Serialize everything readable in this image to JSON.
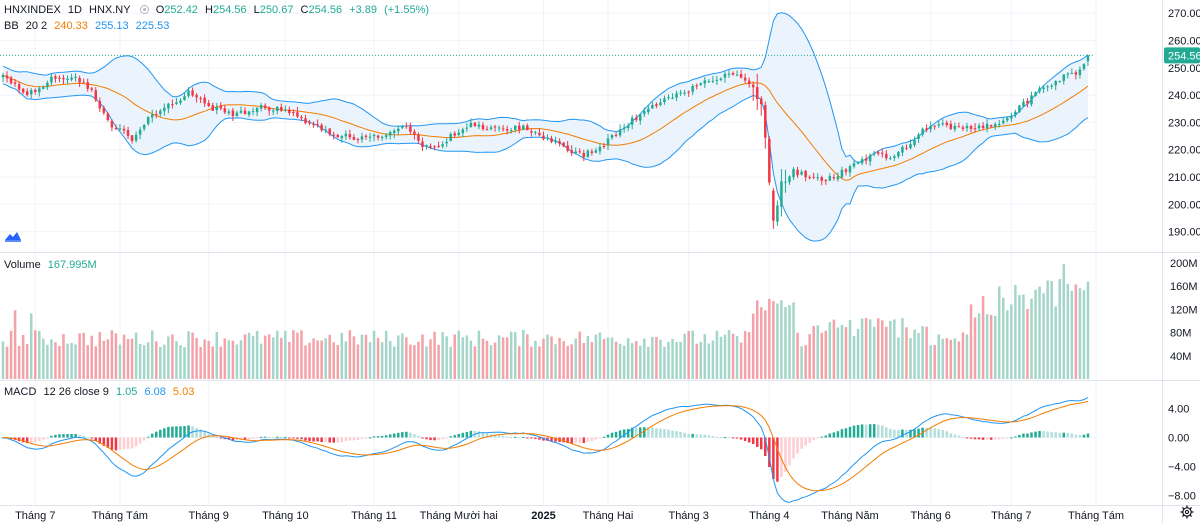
{
  "header": {
    "symbol": "HNXINDEX",
    "interval": "1D",
    "exchange": "HNX.NY",
    "open_label": "O",
    "open": "252.42",
    "high_label": "H",
    "high": "254.56",
    "low_label": "L",
    "low": "250.67",
    "close_label": "C",
    "close": "254.56",
    "change": "+3.89",
    "change_pct": "(+1.55%)"
  },
  "bb_legend": {
    "name": "BB",
    "params": "20 2",
    "basis": "240.33",
    "upper": "255.13",
    "lower": "225.53"
  },
  "volume_legend": {
    "name": "Volume",
    "value": "167.995M"
  },
  "macd_legend": {
    "name": "MACD",
    "params": "12 26 close 9",
    "hist": "1.05",
    "macd": "6.08",
    "signal": "5.03"
  },
  "colors": {
    "up": "#22ab94",
    "down": "#f23645",
    "vol_up": "#a3d6c9",
    "vol_down": "#f4a2a8",
    "bb_band": "#2196f3",
    "bb_basis": "#f57c00",
    "bb_fill": "#ebf4fc",
    "macd": "#2196f3",
    "signal": "#f57c00",
    "hist_up_strong": "#22ab94",
    "hist_up_weak": "#b2dfdb",
    "hist_down_strong": "#f23645",
    "hist_down_weak": "#ffcdd2",
    "last_price_bg": "#22ab94",
    "grid": "#f0f3fa",
    "axis_text": "#131722"
  },
  "chart_data": {
    "type": "candlestick",
    "last_price": 254.56,
    "price_axis": {
      "ticks": [
        190,
        200,
        210,
        220,
        230,
        240,
        250,
        260,
        270
      ],
      "labels": [
        "190.00",
        "200.00",
        "210.00",
        "220.00",
        "230.00",
        "240.00",
        "250.00",
        "260.00",
        "270.00"
      ],
      "last_label": "254.56"
    },
    "volume_axis": {
      "ticks": [
        40,
        80,
        120,
        160,
        200
      ],
      "labels": [
        "40M",
        "80M",
        "120M",
        "160M",
        "200M"
      ]
    },
    "macd_axis": {
      "ticks": [
        4,
        0,
        -4,
        -8
      ],
      "labels": [
        "4.00",
        "0.00",
        "−4.00",
        "−8.00"
      ]
    },
    "time_axis": [
      {
        "label": "Tháng 7",
        "idx": 8
      },
      {
        "label": "Tháng Tám",
        "idx": 29
      },
      {
        "label": "Tháng 9",
        "idx": 51
      },
      {
        "label": "Tháng 10",
        "idx": 70
      },
      {
        "label": "Tháng 11",
        "idx": 92
      },
      {
        "label": "Tháng Mười hai",
        "idx": 113
      },
      {
        "label": "2025",
        "idx": 134
      },
      {
        "label": "Tháng Hai",
        "idx": 150
      },
      {
        "label": "Tháng 3",
        "idx": 170
      },
      {
        "label": "Tháng 4",
        "idx": 190
      },
      {
        "label": "Tháng Năm",
        "idx": 210
      },
      {
        "label": "Tháng 6",
        "idx": 230
      },
      {
        "label": "Tháng 7",
        "idx": 250
      },
      {
        "label": "Tháng Tám",
        "idx": 271
      }
    ],
    "anchors": [
      [
        0,
        247
      ],
      [
        6,
        240
      ],
      [
        12,
        246
      ],
      [
        18,
        246
      ],
      [
        22,
        241
      ],
      [
        26,
        230
      ],
      [
        32,
        224
      ],
      [
        36,
        231
      ],
      [
        42,
        237
      ],
      [
        46,
        241
      ],
      [
        52,
        235
      ],
      [
        58,
        233
      ],
      [
        64,
        236
      ],
      [
        70,
        234
      ],
      [
        76,
        230
      ],
      [
        82,
        226
      ],
      [
        88,
        224
      ],
      [
        94,
        225
      ],
      [
        100,
        228
      ],
      [
        104,
        221
      ],
      [
        108,
        221
      ],
      [
        112,
        226
      ],
      [
        116,
        229
      ],
      [
        120,
        228
      ],
      [
        126,
        228
      ],
      [
        130,
        228
      ],
      [
        134,
        225
      ],
      [
        140,
        220
      ],
      [
        144,
        218
      ],
      [
        148,
        221
      ],
      [
        152,
        226
      ],
      [
        158,
        233
      ],
      [
        164,
        238
      ],
      [
        170,
        242
      ],
      [
        176,
        246
      ],
      [
        180,
        248
      ],
      [
        184,
        246
      ],
      [
        186,
        243
      ],
      [
        188,
        236
      ],
      [
        189,
        225
      ],
      [
        190,
        214
      ],
      [
        191,
        193
      ],
      [
        193,
        208
      ],
      [
        196,
        212
      ],
      [
        200,
        210
      ],
      [
        204,
        209
      ],
      [
        208,
        212
      ],
      [
        212,
        216
      ],
      [
        216,
        218
      ],
      [
        220,
        217
      ],
      [
        224,
        221
      ],
      [
        228,
        228
      ],
      [
        232,
        229
      ],
      [
        236,
        228
      ],
      [
        240,
        228
      ],
      [
        246,
        229
      ],
      [
        250,
        233
      ],
      [
        254,
        238
      ],
      [
        258,
        243
      ],
      [
        262,
        246
      ],
      [
        266,
        248
      ],
      [
        268,
        251
      ],
      [
        269,
        254.56
      ]
    ],
    "candles_count": 270
  }
}
